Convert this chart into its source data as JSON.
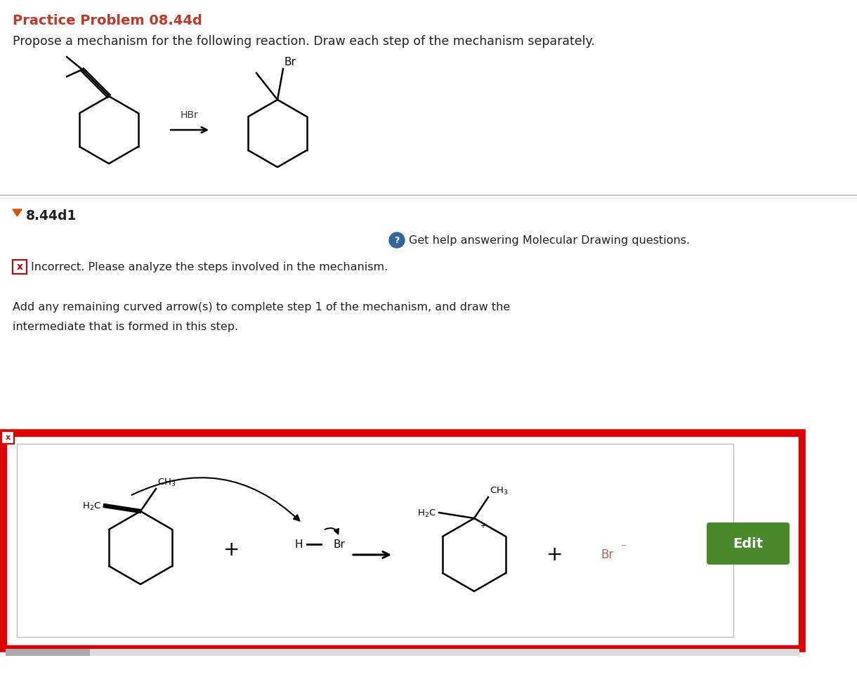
{
  "title": "Practice Problem 08.44d",
  "title_color": "#c0392b",
  "bg_color": "#ffffff",
  "subtitle": "Propose a mechanism for the following reaction. Draw each step of the mechanism separately.",
  "section_label": "8.44d1",
  "triangle_color": "#d35400",
  "help_text": "Get help answering Molecular Drawing questions.",
  "incorrect_text": "Incorrect. Please analyze the steps involved in the mechanism.",
  "instruction_line1": "Add any remaining curved arrow(s) to complete step 1 of the mechanism, and draw the",
  "instruction_line2": "intermediate that is formed in this step.",
  "edit_btn_color": "#4a8a2a",
  "edit_btn_text": "Edit",
  "br_minus_color": "#aa6666",
  "separator_color": "#cccccc",
  "separator2_color": "#e8e8e8"
}
